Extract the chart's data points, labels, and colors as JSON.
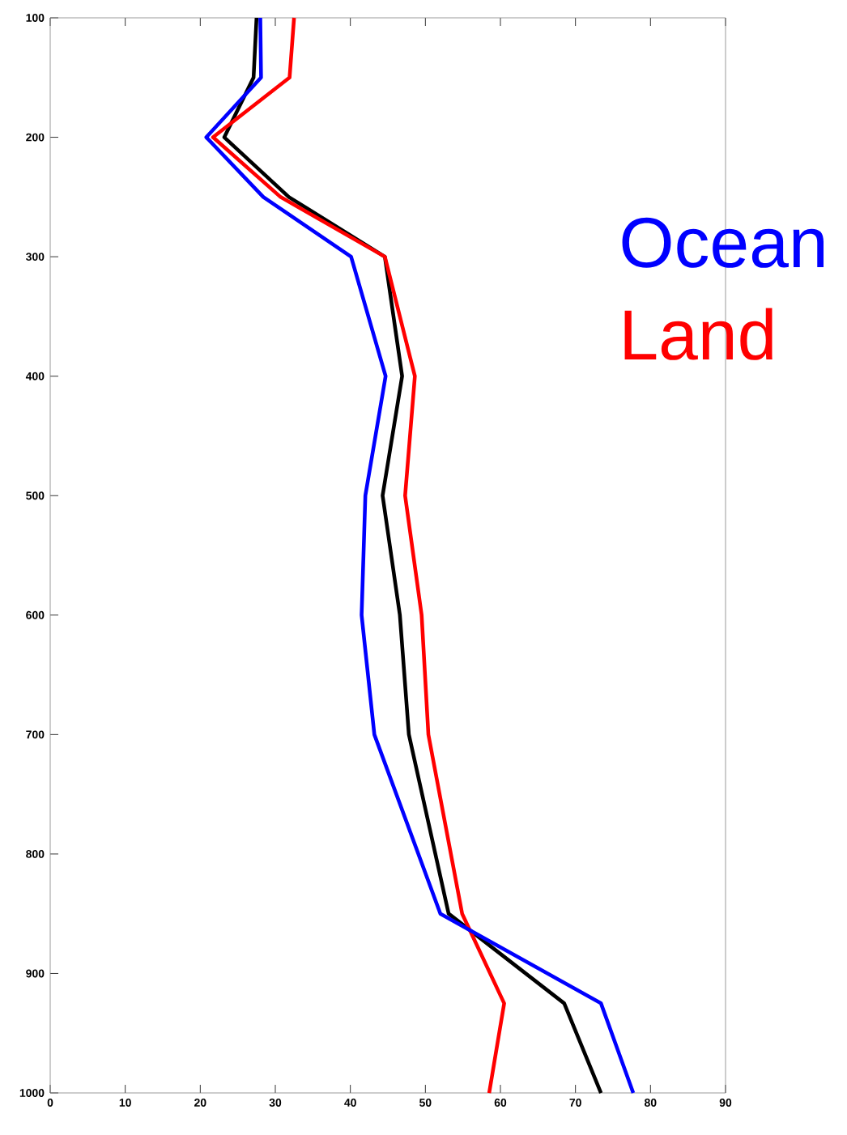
{
  "chart_data": {
    "type": "line",
    "legend": "right",
    "xlim": [
      0,
      90
    ],
    "ylim": [
      1000,
      100
    ],
    "xticks": [
      0,
      10,
      20,
      30,
      40,
      50,
      60,
      70,
      80,
      90
    ],
    "yticks": [
      100,
      200,
      300,
      400,
      500,
      600,
      700,
      800,
      900,
      1000
    ],
    "series": [
      {
        "color": "#000000",
        "x": [
          27.5,
          27.1,
          23.2,
          31.8,
          44.6,
          46.9,
          44.3,
          46.6,
          47.8,
          53.1,
          68.5,
          73.4
        ],
        "values": [
          100,
          150,
          200,
          250,
          300,
          400,
          500,
          600,
          700,
          850,
          925,
          1000
        ]
      },
      {
        "name": "Land",
        "color": "#ff0000",
        "x": [
          32.5,
          31.9,
          21.7,
          30.7,
          44.6,
          48.6,
          47.3,
          49.5,
          50.4,
          54.9,
          60.5,
          58.5
        ],
        "values": [
          100,
          150,
          200,
          250,
          300,
          400,
          500,
          600,
          700,
          850,
          925,
          1000
        ]
      },
      {
        "name": "Ocean",
        "color": "#0000ff",
        "x": [
          28.0,
          28.1,
          20.8,
          28.4,
          40.1,
          44.7,
          42.0,
          41.5,
          43.2,
          52.0,
          73.4,
          77.7
        ],
        "values": [
          100,
          150,
          200,
          250,
          300,
          400,
          500,
          600,
          700,
          850,
          925,
          1000
        ]
      }
    ]
  }
}
